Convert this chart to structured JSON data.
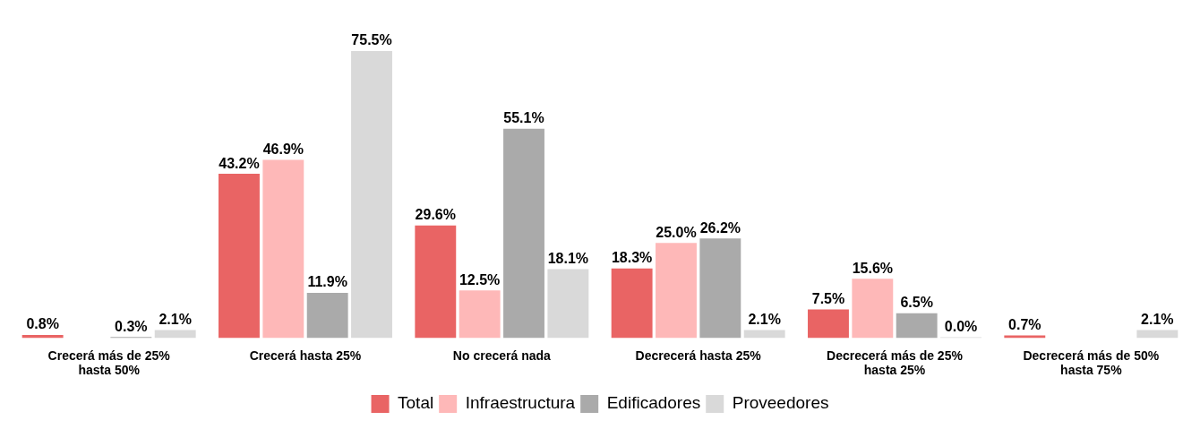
{
  "chart_data": {
    "type": "bar",
    "categories": [
      "Crecerá más de 25% hasta 50%",
      "Crecerá hasta 25%",
      "No crecerá nada",
      "Decrecerá hasta 25%",
      "Decrecerá más de 25% hasta 25%",
      "Decrecerá más de 50% hasta 75%"
    ],
    "series": [
      {
        "name": "Total",
        "color": "#e96464",
        "values": [
          0.8,
          43.2,
          29.6,
          18.3,
          7.5,
          0.7
        ],
        "value_labels": [
          "0.8%",
          "43.2%",
          "29.6%",
          "18.3%",
          "7.5%",
          "0.7%"
        ]
      },
      {
        "name": "Infraestructura",
        "color": "#feb8b8",
        "values": [
          null,
          46.9,
          12.5,
          25.0,
          15.6,
          null
        ],
        "value_labels": [
          null,
          "46.9%",
          "12.5%",
          "25.0%",
          "15.6%",
          null
        ]
      },
      {
        "name": "Edificadores",
        "color": "#aaaaaa",
        "values": [
          0.3,
          11.9,
          55.1,
          26.2,
          6.5,
          null
        ],
        "value_labels": [
          "0.3%",
          "11.9%",
          "55.1%",
          "26.2%",
          "6.5%",
          null
        ]
      },
      {
        "name": "Proveedores",
        "color": "#d9d9d9",
        "values": [
          2.1,
          75.5,
          18.1,
          2.1,
          0.0,
          2.1
        ],
        "value_labels": [
          "2.1%",
          "75.5%",
          "18.1%",
          "2.1%",
          "0.0%",
          "2.1%"
        ]
      }
    ],
    "legend": "bottom",
    "grid": false
  }
}
